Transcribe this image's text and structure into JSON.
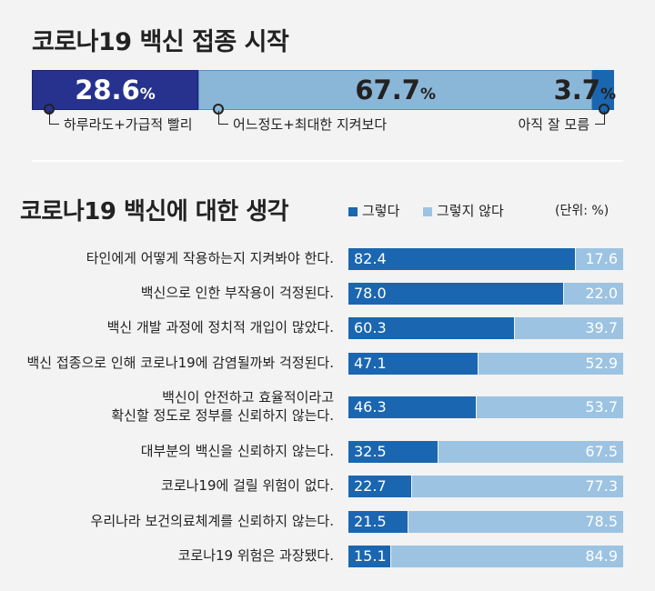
{
  "chart_data": [
    {
      "type": "bar",
      "stacked": true,
      "orientation": "horizontal",
      "title": "코로나19 백신 접종 시작",
      "categories": [
        "하루라도+가급적 빨리",
        "어느정도+최대한 지켜보다",
        "아직 잘 모름"
      ],
      "values": [
        28.6,
        67.7,
        3.7
      ],
      "value_labels": [
        "28.6",
        "67.7",
        "3.7"
      ],
      "unit_label": "%",
      "colors": [
        "#26328e",
        "#8ab6d8",
        "#1a66b0"
      ]
    },
    {
      "type": "bar",
      "stacked": true,
      "orientation": "horizontal",
      "title": "코로나19 백신에 대한 생각",
      "unit": "(단위: %)",
      "categories": [
        "타인에게 어떻게 작용하는지 지켜봐야 한다.",
        "백신으로 인한 부작용이 걱정된다.",
        "백신 개발 과정에 정치적 개입이 많았다.",
        "백신 접종으로 인해 코로나19에 감염될까봐 걱정된다.",
        "백신이 안전하고 효율적이라고 확신할 정도로 정부를 신뢰하지 않는다.",
        "대부분의 백신을 신뢰하지 않는다.",
        "코로나19에 걸릴 위험이 없다.",
        "우리나라 보건의료체계를 신뢰하지 않는다.",
        "코로나19 위험은 과장됐다."
      ],
      "category_lines": [
        [
          "타인에게 어떻게 작용하는지 지켜봐야 한다."
        ],
        [
          "백신으로 인한 부작용이 걱정된다."
        ],
        [
          "백신 개발 과정에 정치적 개입이 많았다."
        ],
        [
          "백신 접종으로 인해 코로나19에 감염될까봐 걱정된다."
        ],
        [
          "백신이 안전하고 효율적이라고",
          "확신할 정도로 정부를 신뢰하지 않는다."
        ],
        [
          "대부분의 백신을 신뢰하지 않는다."
        ],
        [
          "코로나19에 걸릴 위험이 없다."
        ],
        [
          "우리나라 보건의료체계를 신뢰하지 않는다."
        ],
        [
          "코로나19 위험은 과장됐다."
        ]
      ],
      "series": [
        {
          "name": "그렇다",
          "color": "#1a66b0",
          "values": [
            82.4,
            78.0,
            60.3,
            47.1,
            46.3,
            32.5,
            22.7,
            21.5,
            15.1
          ],
          "labels": [
            "82.4",
            "78.0",
            "60.3",
            "47.1",
            "46.3",
            "32.5",
            "22.7",
            "21.5",
            "15.1"
          ]
        },
        {
          "name": "그렇지 않다",
          "color": "#9cc3e2",
          "values": [
            17.6,
            22.0,
            39.7,
            52.9,
            53.7,
            67.5,
            77.3,
            78.5,
            84.9
          ],
          "labels": [
            "17.6",
            "22.0",
            "39.7",
            "52.9",
            "53.7",
            "67.5",
            "77.3",
            "78.5",
            "84.9"
          ]
        }
      ]
    }
  ]
}
